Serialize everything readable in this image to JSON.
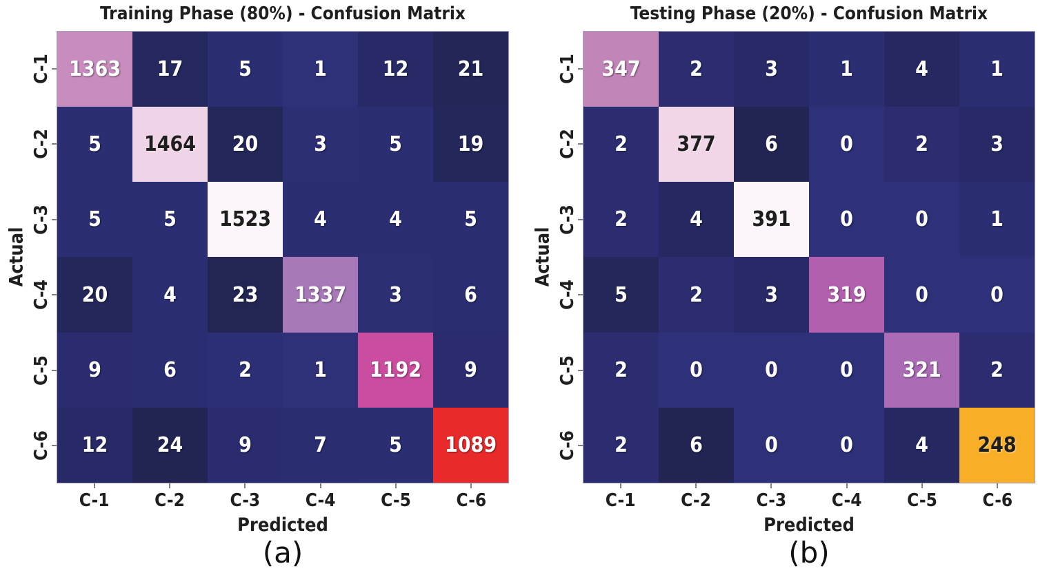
{
  "page": {
    "background": "#ffffff"
  },
  "chart_data": [
    {
      "type": "heatmap",
      "title": "Training Phase (80%) - Confusion Matrix",
      "caption": "(a)",
      "xlabel": "Predicted",
      "ylabel": "Actual",
      "x_categories": [
        "C-1",
        "C-2",
        "C-3",
        "C-4",
        "C-5",
        "C-6"
      ],
      "y_categories": [
        "C-1",
        "C-2",
        "C-3",
        "C-4",
        "C-5",
        "C-6"
      ],
      "matrix": [
        [
          1363,
          17,
          5,
          1,
          12,
          21
        ],
        [
          5,
          1464,
          20,
          3,
          5,
          19
        ],
        [
          5,
          5,
          1523,
          4,
          4,
          5
        ],
        [
          20,
          4,
          23,
          1337,
          3,
          6
        ],
        [
          9,
          6,
          2,
          1,
          1192,
          9
        ],
        [
          12,
          24,
          9,
          7,
          5,
          1089
        ]
      ],
      "vmin": 0,
      "vmax": 1523,
      "legend": "none",
      "grid": "off"
    },
    {
      "type": "heatmap",
      "title": "Testing Phase (20%) - Confusion Matrix",
      "caption": "(b)",
      "xlabel": "Predicted",
      "ylabel": "Actual",
      "x_categories": [
        "C-1",
        "C-2",
        "C-3",
        "C-4",
        "C-5",
        "C-6"
      ],
      "y_categories": [
        "C-1",
        "C-2",
        "C-3",
        "C-4",
        "C-5",
        "C-6"
      ],
      "matrix": [
        [
          347,
          2,
          3,
          1,
          4,
          1
        ],
        [
          2,
          377,
          6,
          0,
          2,
          3
        ],
        [
          2,
          4,
          391,
          0,
          0,
          1
        ],
        [
          5,
          2,
          3,
          319,
          0,
          0
        ],
        [
          2,
          0,
          0,
          0,
          321,
          2
        ],
        [
          2,
          6,
          0,
          0,
          4,
          248
        ]
      ],
      "vmin": 0,
      "vmax": 391,
      "legend": "none",
      "grid": "off"
    }
  ],
  "style": {
    "colormap_stops": [
      [
        0.0,
        "#2e3079"
      ],
      [
        0.003,
        "#2c2e73"
      ],
      [
        0.006,
        "#2a2c6f"
      ],
      [
        0.008,
        "#282a67"
      ],
      [
        0.0105,
        "#262960"
      ],
      [
        0.013,
        "#242759"
      ],
      [
        0.016,
        "#222553"
      ],
      [
        0.05,
        "#222553"
      ],
      [
        0.634,
        "#f9ae27"
      ],
      [
        0.715,
        "#e92a2b"
      ],
      [
        0.783,
        "#cb4da0"
      ],
      [
        0.816,
        "#b25fae"
      ],
      [
        0.822,
        "#a96db6"
      ],
      [
        0.878,
        "#a779b9"
      ],
      [
        0.888,
        "#c386b8"
      ],
      [
        0.896,
        "#c98dc0"
      ],
      [
        0.961,
        "#efd3e6"
      ],
      [
        0.965,
        "#f2d7e9"
      ],
      [
        1.0,
        "#fcf5fa"
      ]
    ],
    "annotation_light_text": "#ffffff",
    "annotation_dark_text": "#1e1e1e",
    "luminance_threshold": 0.45,
    "tick_mark_color": "#7f7f7f",
    "title_color": "#1f1f1f"
  }
}
